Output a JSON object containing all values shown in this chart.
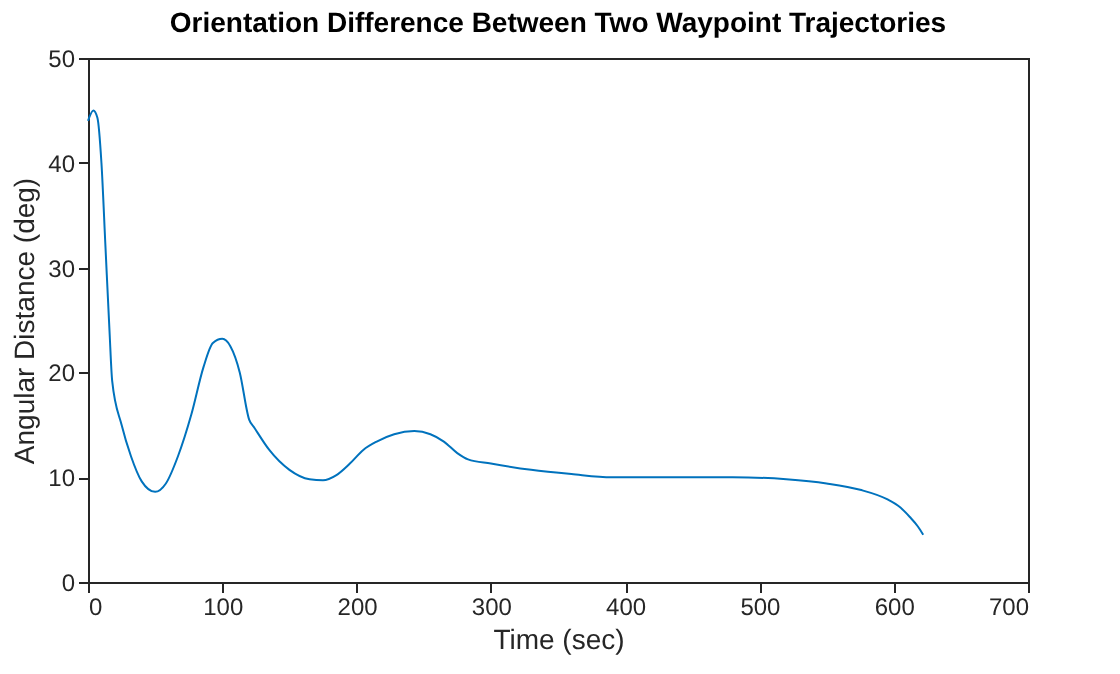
{
  "chart_data": {
    "type": "line",
    "title": "Orientation Difference Between Two Waypoint Trajectories",
    "xlabel": "Time (sec)",
    "ylabel": "Angular Distance (deg)",
    "x": [
      0,
      4,
      7,
      10,
      13,
      16,
      18,
      25,
      32,
      40,
      50,
      58,
      67,
      77,
      86,
      93,
      100,
      106,
      113,
      120,
      124,
      135,
      150,
      165,
      175,
      185,
      195,
      205,
      215,
      228,
      243,
      255,
      265,
      275,
      283,
      300,
      330,
      360,
      390,
      430,
      480,
      520,
      550,
      575,
      595,
      605,
      612,
      618,
      622
    ],
    "series": [
      {
        "color": "#0072bd",
        "values": [
          44,
          45,
          44.3,
          40,
          32,
          24,
          19.2,
          15,
          12,
          9.6,
          8.6,
          9.4,
          12,
          16,
          20.5,
          22.8,
          23.2,
          22.5,
          20,
          15.5,
          14.7,
          12.6,
          10.7,
          9.8,
          9.7,
          10.2,
          11.3,
          12.6,
          13.4,
          14.1,
          14.4,
          14.1,
          13.4,
          12.3,
          11.7,
          11.3,
          10.7,
          10.3,
          10.0,
          10.0,
          10.0,
          9.8,
          9.4,
          8.8,
          7.9,
          7.1,
          6.2,
          5.3,
          4.5
        ]
      }
    ],
    "xlim": [
      0,
      700
    ],
    "xticks": [
      0,
      100,
      200,
      300,
      400,
      500,
      600,
      700
    ],
    "ylim": [
      0,
      50
    ],
    "yticks": [
      0,
      10,
      20,
      30,
      40,
      50
    ],
    "grid": false,
    "marker": "none",
    "line_style": "solid"
  }
}
